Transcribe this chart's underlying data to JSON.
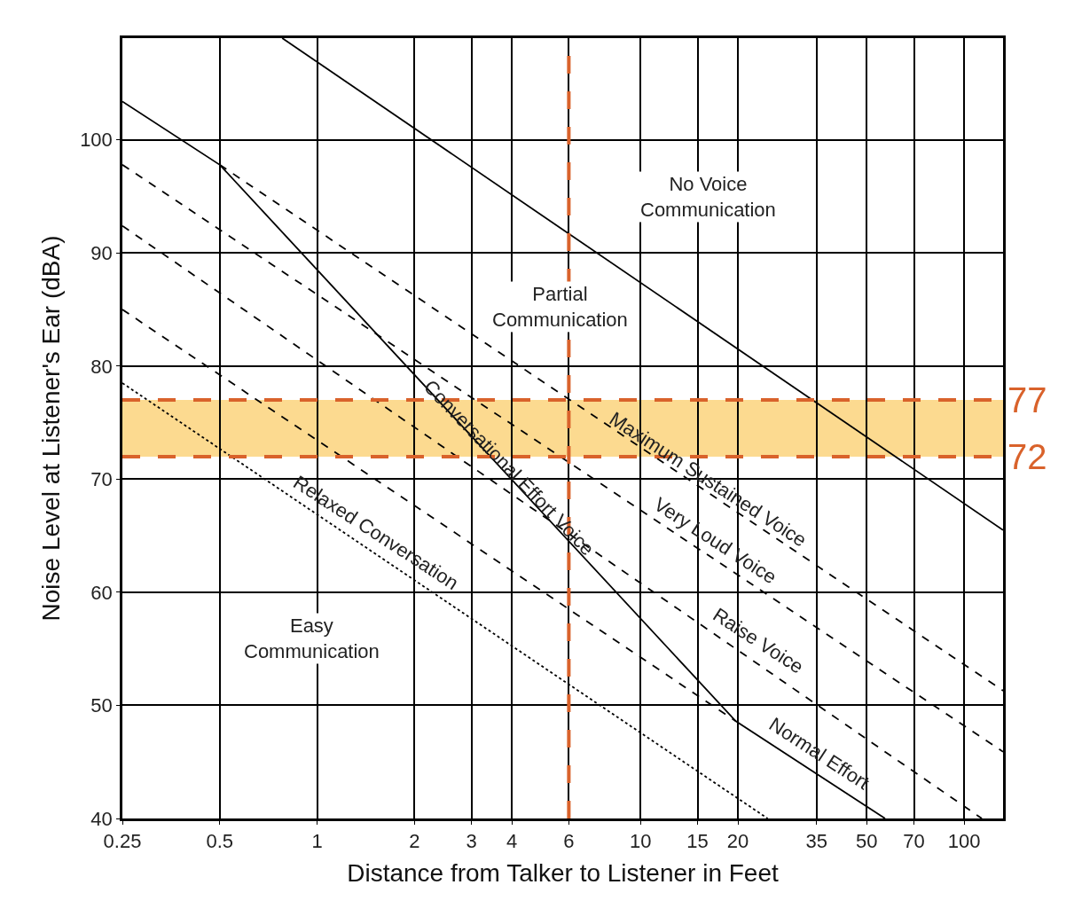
{
  "chart_data": {
    "type": "line",
    "xlabel": "Distance from Talker to Listener in Feet",
    "ylabel": "Noise Level at Listener's Ear (dBA)",
    "log": "x",
    "xlim": [
      0.25,
      132
    ],
    "ylim": [
      40,
      109
    ],
    "xticks": [
      0.25,
      0.5,
      1,
      2,
      3,
      4,
      6,
      10,
      15,
      20,
      35,
      50,
      70,
      100
    ],
    "yticks": [
      40,
      50,
      60,
      70,
      80,
      90,
      100
    ],
    "grid": true,
    "marker": "none",
    "series": [
      {
        "color": "#000000",
        "line_style": "solid",
        "x": [
          0.78,
          132
        ],
        "values": [
          109,
          65.5
        ]
      },
      {
        "color": "#000000",
        "line_style": "solid",
        "x": [
          0.25,
          0.5,
          19.7,
          57
        ],
        "values": [
          103.4,
          97.8,
          48.6,
          40
        ]
      },
      {
        "color": "#000000",
        "line_style": "dashed",
        "x": [
          0.5,
          132
        ],
        "values": [
          97.8,
          51.3
        ]
      },
      {
        "color": "#000000",
        "line_style": "dashed",
        "x": [
          0.25,
          132
        ],
        "values": [
          97.8,
          45.9
        ]
      },
      {
        "color": "#000000",
        "line_style": "dashed",
        "x": [
          0.25,
          113.5
        ],
        "values": [
          92.4,
          40
        ]
      },
      {
        "color": "#000000",
        "line_style": "dashed",
        "x": [
          0.25,
          19.7
        ],
        "values": [
          85.0,
          48.6
        ]
      },
      {
        "color": "#000000",
        "line_style": "dotted",
        "x": [
          0.25,
          24.7
        ],
        "values": [
          78.5,
          40
        ]
      }
    ],
    "bands": [
      {
        "axis": "y",
        "from": 72,
        "to": 77,
        "label": null,
        "color": "#fcd37d"
      }
    ],
    "ref_lines": [
      {
        "axis": "y",
        "value": 77,
        "label": "77",
        "color": "#d9622b",
        "line_style": "dashed"
      },
      {
        "axis": "y",
        "value": 72,
        "label": "72",
        "color": "#d9622b",
        "line_style": "dashed"
      },
      {
        "axis": "x",
        "value": 6,
        "label": null,
        "color": "#d9622b",
        "line_style": "dashed"
      }
    ],
    "annotations": [
      "No Voice\nCommunication",
      "Partial\nCommunication",
      "Easy\nCommunication",
      "Conversational Effort Voice",
      "Maximum Sustained Voice",
      "Very Loud Voice",
      "Raise Voice",
      "Normal Effort",
      "Relaxed Conversation"
    ]
  }
}
